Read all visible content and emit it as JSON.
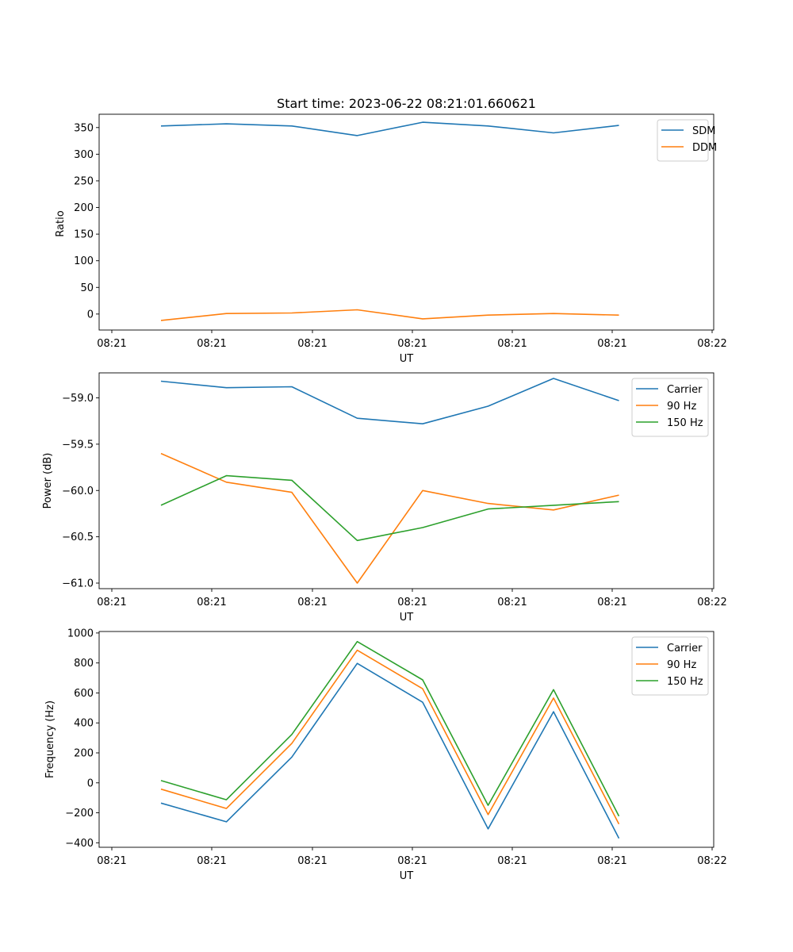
{
  "chart_data": [
    {
      "type": "line",
      "title": "Start time: 2023-06-22 08:21:01.660621",
      "xlabel": "UT",
      "ylabel": "Ratio",
      "x_tick_labels": [
        "08:21",
        "08:21",
        "08:21",
        "08:21",
        "08:21",
        "08:21",
        "08:22"
      ],
      "y_ticks": [
        0,
        50,
        100,
        150,
        200,
        250,
        300,
        350
      ],
      "ylim": [
        -30,
        375
      ],
      "grid": false,
      "legend": "top-right",
      "series": [
        {
          "name": "SDM",
          "color": "#1f77b4",
          "values": [
            353,
            357,
            353,
            335,
            360,
            353,
            340,
            354
          ]
        },
        {
          "name": "DDM",
          "color": "#ff7f0e",
          "values": [
            -12,
            1,
            2,
            8,
            -9,
            -2,
            1,
            -2
          ]
        }
      ]
    },
    {
      "type": "line",
      "title": "",
      "xlabel": "UT",
      "ylabel": "Power (dB)",
      "x_tick_labels": [
        "08:21",
        "08:21",
        "08:21",
        "08:21",
        "08:21",
        "08:21",
        "08:22"
      ],
      "y_ticks": [
        -59.0,
        -59.5,
        -60.0,
        -60.5,
        -61.0
      ],
      "y_tick_labels": [
        "−59.0",
        "−59.5",
        "−60.0",
        "−60.5",
        "−61.0"
      ],
      "ylim": [
        -61.06,
        -58.73
      ],
      "grid": false,
      "legend": "top-right",
      "series": [
        {
          "name": "Carrier",
          "color": "#1f77b4",
          "values": [
            -58.82,
            -58.89,
            -58.88,
            -59.22,
            -59.28,
            -59.09,
            -58.79,
            -59.03
          ]
        },
        {
          "name": "90 Hz",
          "color": "#ff7f0e",
          "values": [
            -59.6,
            -59.91,
            -60.02,
            -61.0,
            -60.0,
            -60.14,
            -60.21,
            -60.05
          ]
        },
        {
          "name": "150 Hz",
          "color": "#2ca02c",
          "values": [
            -60.16,
            -59.84,
            -59.89,
            -60.54,
            -60.4,
            -60.2,
            -60.16,
            -60.12
          ]
        }
      ]
    },
    {
      "type": "line",
      "title": "",
      "xlabel": "UT",
      "ylabel": "Frequency (Hz)",
      "x_tick_labels": [
        "08:21",
        "08:21",
        "08:21",
        "08:21",
        "08:21",
        "08:21",
        "08:22"
      ],
      "y_ticks": [
        -400,
        -200,
        0,
        200,
        400,
        600,
        800,
        1000
      ],
      "y_tick_labels": [
        "−400",
        "−200",
        "0",
        "200",
        "400",
        "600",
        "800",
        "1000"
      ],
      "ylim": [
        -430,
        1010
      ],
      "grid": false,
      "legend": "top-right",
      "series": [
        {
          "name": "Carrier",
          "color": "#1f77b4",
          "values": [
            -135,
            -260,
            172,
            797,
            538,
            -307,
            475,
            -370
          ]
        },
        {
          "name": "90 Hz",
          "color": "#ff7f0e",
          "values": [
            -42,
            -171,
            263,
            885,
            628,
            -212,
            566,
            -275
          ]
        },
        {
          "name": "150 Hz",
          "color": "#2ca02c",
          "values": [
            15,
            -113,
            323,
            943,
            687,
            -150,
            622,
            -222
          ]
        }
      ]
    }
  ]
}
